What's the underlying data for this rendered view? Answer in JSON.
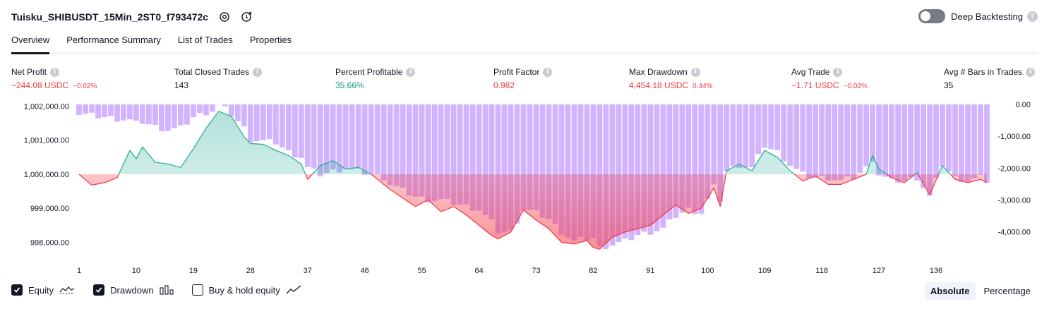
{
  "header": {
    "title": "Tuisku_SHIBUSDT_15Min_2ST0_f793472c",
    "deep_backtesting_label": "Deep Backtesting"
  },
  "tabs": [
    {
      "label": "Overview",
      "active": true
    },
    {
      "label": "Performance Summary",
      "active": false
    },
    {
      "label": "List of Trades",
      "active": false
    },
    {
      "label": "Properties",
      "active": false
    }
  ],
  "metrics": {
    "net_profit": {
      "label": "Net Profit",
      "value": "−244.08 USDC",
      "pct": "−0.02%"
    },
    "total_closed_trades": {
      "label": "Total Closed Trades",
      "value": "143"
    },
    "percent_profitable": {
      "label": "Percent Profitable",
      "value": "35.66%"
    },
    "profit_factor": {
      "label": "Profit Factor",
      "value": "0.982"
    },
    "max_drawdown": {
      "label": "Max Drawdown",
      "value": "4,454.18 USDC",
      "pct": "0.44%"
    },
    "avg_trade": {
      "label": "Avg Trade",
      "value": "−1.71 USDC",
      "pct": "−0.02%"
    },
    "avg_bars": {
      "label": "Avg # Bars in Trades",
      "value": "35"
    }
  },
  "chart_data": {
    "type": "area",
    "baseline": 1000000,
    "left_axis": {
      "ticks": [
        998000,
        999000,
        1000000,
        1001000,
        1002000
      ],
      "tick_labels": [
        "998,000.00",
        "999,000.00",
        "1,000,000.00",
        "1,001,000.00",
        "1,002,000.00"
      ],
      "range": [
        997700,
        1002050
      ]
    },
    "right_axis": {
      "ticks": [
        0,
        -1000,
        -2000,
        -3000,
        -4000
      ],
      "tick_labels": [
        "0.00",
        "-1,000.00",
        "-2,000.00",
        "-3,000.00",
        "-4,000.00"
      ],
      "range": [
        -4650,
        0
      ]
    },
    "x_axis": {
      "ticks": [
        1,
        10,
        19,
        28,
        37,
        46,
        55,
        64,
        73,
        82,
        91,
        100,
        109,
        118,
        127,
        136
      ],
      "tick_labels": [
        "1",
        "10",
        "19",
        "28",
        "37",
        "46",
        "55",
        "64",
        "73",
        "82",
        "91",
        "100",
        "109",
        "118",
        "127",
        "136"
      ],
      "range": [
        1,
        144
      ]
    },
    "series": [
      {
        "name": "Equity",
        "x": [
          1,
          3,
          5,
          7,
          9,
          10,
          11,
          13,
          15,
          17,
          19,
          21,
          22,
          23,
          25,
          27,
          28,
          30,
          32,
          34,
          36,
          37,
          39,
          41,
          43,
          45,
          47,
          49,
          50,
          52,
          54,
          56,
          58,
          60,
          62,
          64,
          66,
          67,
          69,
          71,
          73,
          75,
          77,
          79,
          81,
          82,
          83,
          85,
          87,
          89,
          91,
          93,
          95,
          97,
          99,
          100,
          101,
          102,
          103,
          105,
          107,
          109,
          111,
          113,
          115,
          117,
          119,
          121,
          123,
          125,
          126,
          127,
          129,
          131,
          133,
          135,
          137,
          139,
          141,
          143,
          144
        ],
        "values": [
          1000000,
          999680,
          999750,
          999900,
          1000700,
          1000450,
          1000800,
          1000350,
          1000300,
          1000200,
          1000750,
          1001350,
          1001600,
          1001850,
          1001700,
          1001100,
          1000900,
          1000880,
          1000700,
          1000550,
          1000300,
          999850,
          1000250,
          1000400,
          1000150,
          1000200,
          1000000,
          999700,
          999550,
          999300,
          999050,
          999250,
          998900,
          999050,
          998800,
          998500,
          998200,
          998100,
          998300,
          998950,
          998650,
          998400,
          998000,
          997950,
          998050,
          997850,
          997800,
          998150,
          998300,
          998400,
          998500,
          998800,
          999100,
          998850,
          999000,
          999300,
          999600,
          999050,
          1000100,
          1000300,
          1000100,
          1000700,
          1000500,
          1000100,
          999800,
          999950,
          999700,
          999700,
          999850,
          1000000,
          1000550,
          1000150,
          999900,
          999750,
          1000050,
          999400,
          1000250,
          999850,
          999750,
          999850,
          999750
        ]
      },
      {
        "name": "Drawdown",
        "x": [
          1,
          3,
          5,
          7,
          9,
          10,
          11,
          13,
          15,
          17,
          19,
          21,
          22,
          23,
          25,
          27,
          28,
          30,
          32,
          34,
          36,
          37,
          39,
          41,
          43,
          45,
          47,
          49,
          50,
          52,
          54,
          56,
          58,
          60,
          62,
          64,
          66,
          67,
          69,
          71,
          73,
          75,
          77,
          79,
          81,
          82,
          83,
          85,
          87,
          89,
          91,
          93,
          95,
          97,
          99,
          100,
          101,
          102,
          103,
          105,
          107,
          109,
          111,
          113,
          115,
          117,
          119,
          121,
          123,
          125,
          126,
          127,
          129,
          131,
          133,
          135,
          137,
          139,
          141,
          143,
          144
        ],
        "values": [
          -300,
          -350,
          -400,
          -450,
          -500,
          -600,
          -550,
          -700,
          -800,
          -750,
          -400,
          -250,
          -200,
          0,
          -300,
          -750,
          -1100,
          -1150,
          -1200,
          -1500,
          -1650,
          -2000,
          -2200,
          -2100,
          -2000,
          -2100,
          -2200,
          -2300,
          -2500,
          -2700,
          -2900,
          -3000,
          -3000,
          -3100,
          -3200,
          -3300,
          -3700,
          -4000,
          -4000,
          -3300,
          -3400,
          -3600,
          -4000,
          -4300,
          -4200,
          -4200,
          -4500,
          -4400,
          -4300,
          -4100,
          -4000,
          -3900,
          -3500,
          -3300,
          -3400,
          -3000,
          -2600,
          -3000,
          -2100,
          -1900,
          -2000,
          -1300,
          -1500,
          -1900,
          -2200,
          -2300,
          -2300,
          -2400,
          -2300,
          -2000,
          -1700,
          -2200,
          -2400,
          -2400,
          -2300,
          -2900,
          -1900,
          -2300,
          -2400,
          -2300,
          -2400
        ]
      }
    ],
    "legend": [
      {
        "label": "Equity",
        "checked": true
      },
      {
        "label": "Drawdown",
        "checked": true
      },
      {
        "label": "Buy & hold equity",
        "checked": false
      }
    ],
    "grid": false
  },
  "view_modes": [
    {
      "label": "Absolute",
      "active": true
    },
    {
      "label": "Percentage",
      "active": false
    }
  ],
  "colors": {
    "equity_up": "#22ab94",
    "equity_down": "#f23645",
    "drawdown": "#d1b3ff",
    "text": "#131722"
  }
}
